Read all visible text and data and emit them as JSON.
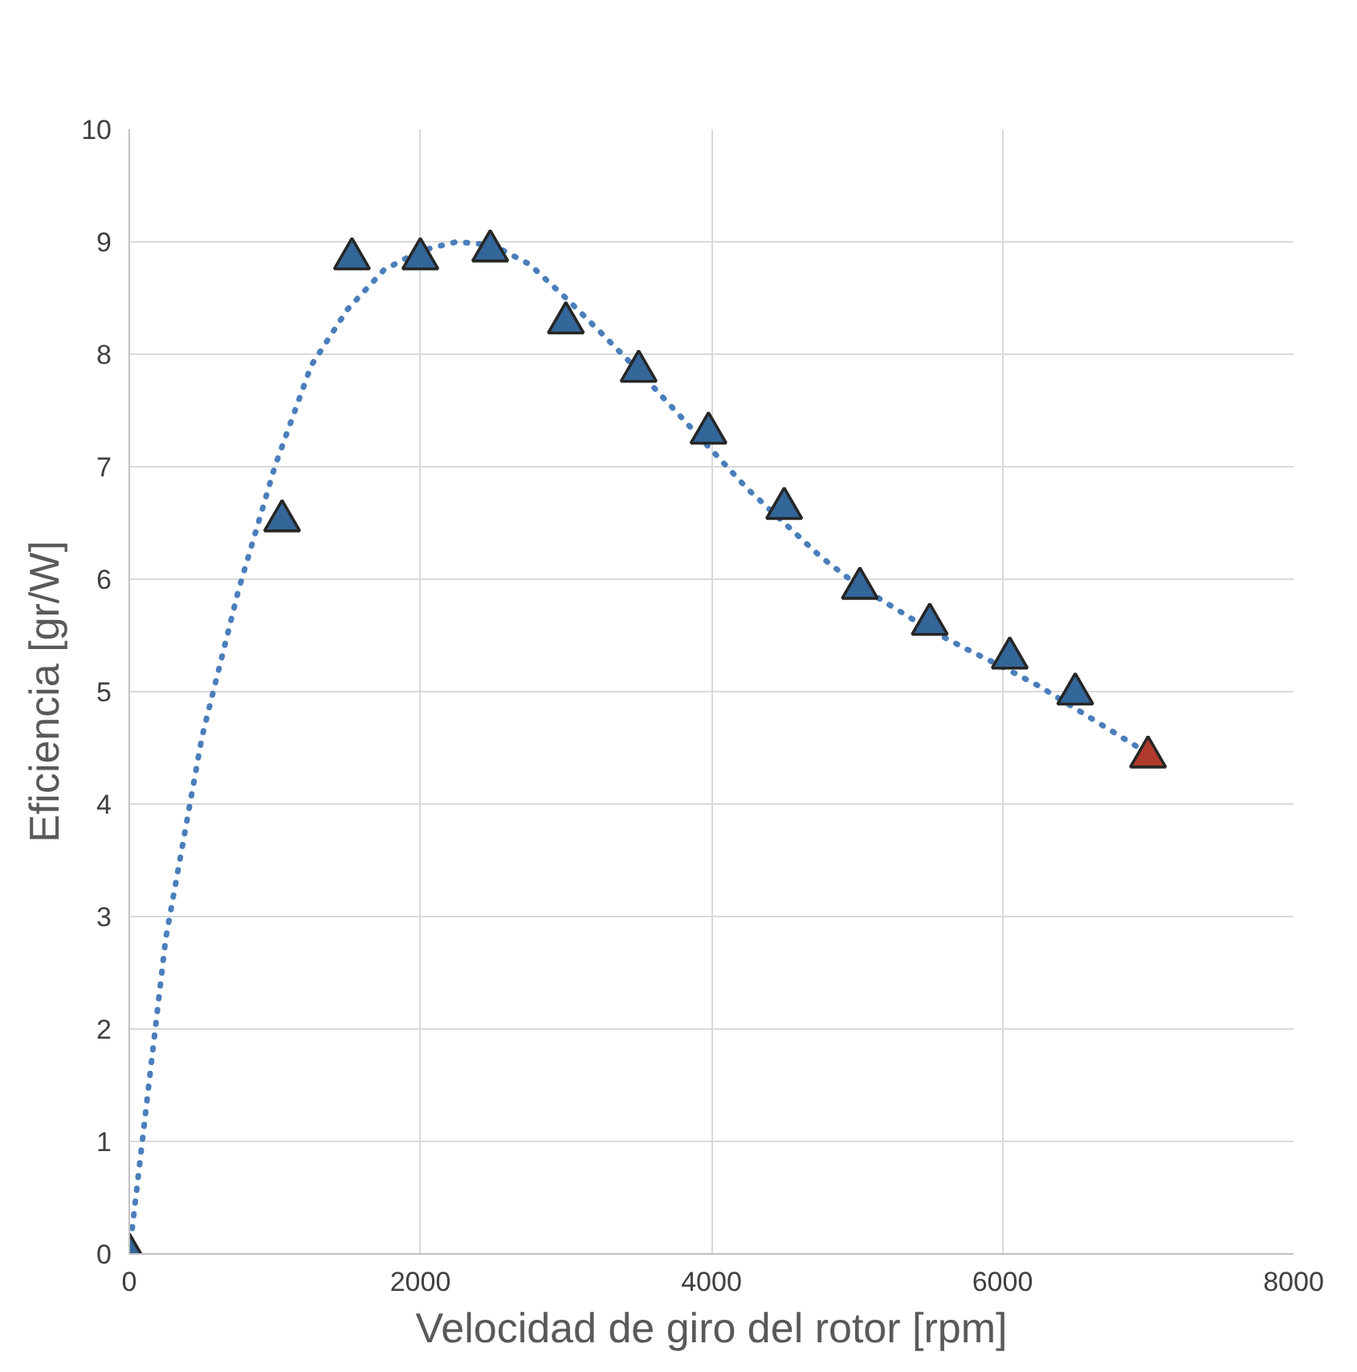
{
  "chart_data": {
    "type": "scatter",
    "xlabel": "Velocidad de giro del rotor [rpm]",
    "ylabel": "Eficiencia [gr/W]",
    "xlim": [
      0,
      8000
    ],
    "ylim": [
      0,
      10
    ],
    "xticks": [
      0,
      2000,
      4000,
      6000,
      8000
    ],
    "yticks": [
      0,
      1,
      2,
      3,
      4,
      5,
      6,
      7,
      8,
      9,
      10
    ],
    "grid": true,
    "series": [
      {
        "marker": "triangle",
        "x": [
          0,
          1050,
          1530,
          2000,
          2480,
          3000,
          3500,
          3980,
          4500,
          5020,
          5500,
          6050,
          6500,
          7000
        ],
        "values": [
          0,
          6.52,
          8.85,
          8.85,
          8.92,
          8.28,
          7.85,
          7.3,
          6.63,
          5.92,
          5.6,
          5.3,
          4.98,
          4.42
        ],
        "colors": [
          "#336699",
          "#336699",
          "#336699",
          "#336699",
          "#336699",
          "#336699",
          "#336699",
          "#336699",
          "#336699",
          "#336699",
          "#336699",
          "#336699",
          "#336699",
          "#b03a2e"
        ]
      },
      {
        "type": "line",
        "color": "#4a7ebb",
        "line_style": "dotted",
        "x": [
          0,
          250,
          500,
          750,
          1000,
          1250,
          1500,
          1750,
          2000,
          2250,
          2500,
          2750,
          3000,
          3250,
          3500,
          3750,
          4000,
          4250,
          4500,
          4750,
          5000,
          5250,
          5500,
          5750,
          6000,
          6250,
          6500,
          6750,
          7000
        ],
        "values": [
          0,
          2.8,
          4.6,
          5.9,
          7.0,
          7.9,
          8.4,
          8.75,
          8.92,
          9.0,
          8.97,
          8.8,
          8.5,
          8.18,
          7.85,
          7.5,
          7.15,
          6.8,
          6.5,
          6.2,
          5.95,
          5.75,
          5.55,
          5.38,
          5.22,
          5.05,
          4.85,
          4.65,
          4.45
        ]
      }
    ]
  }
}
